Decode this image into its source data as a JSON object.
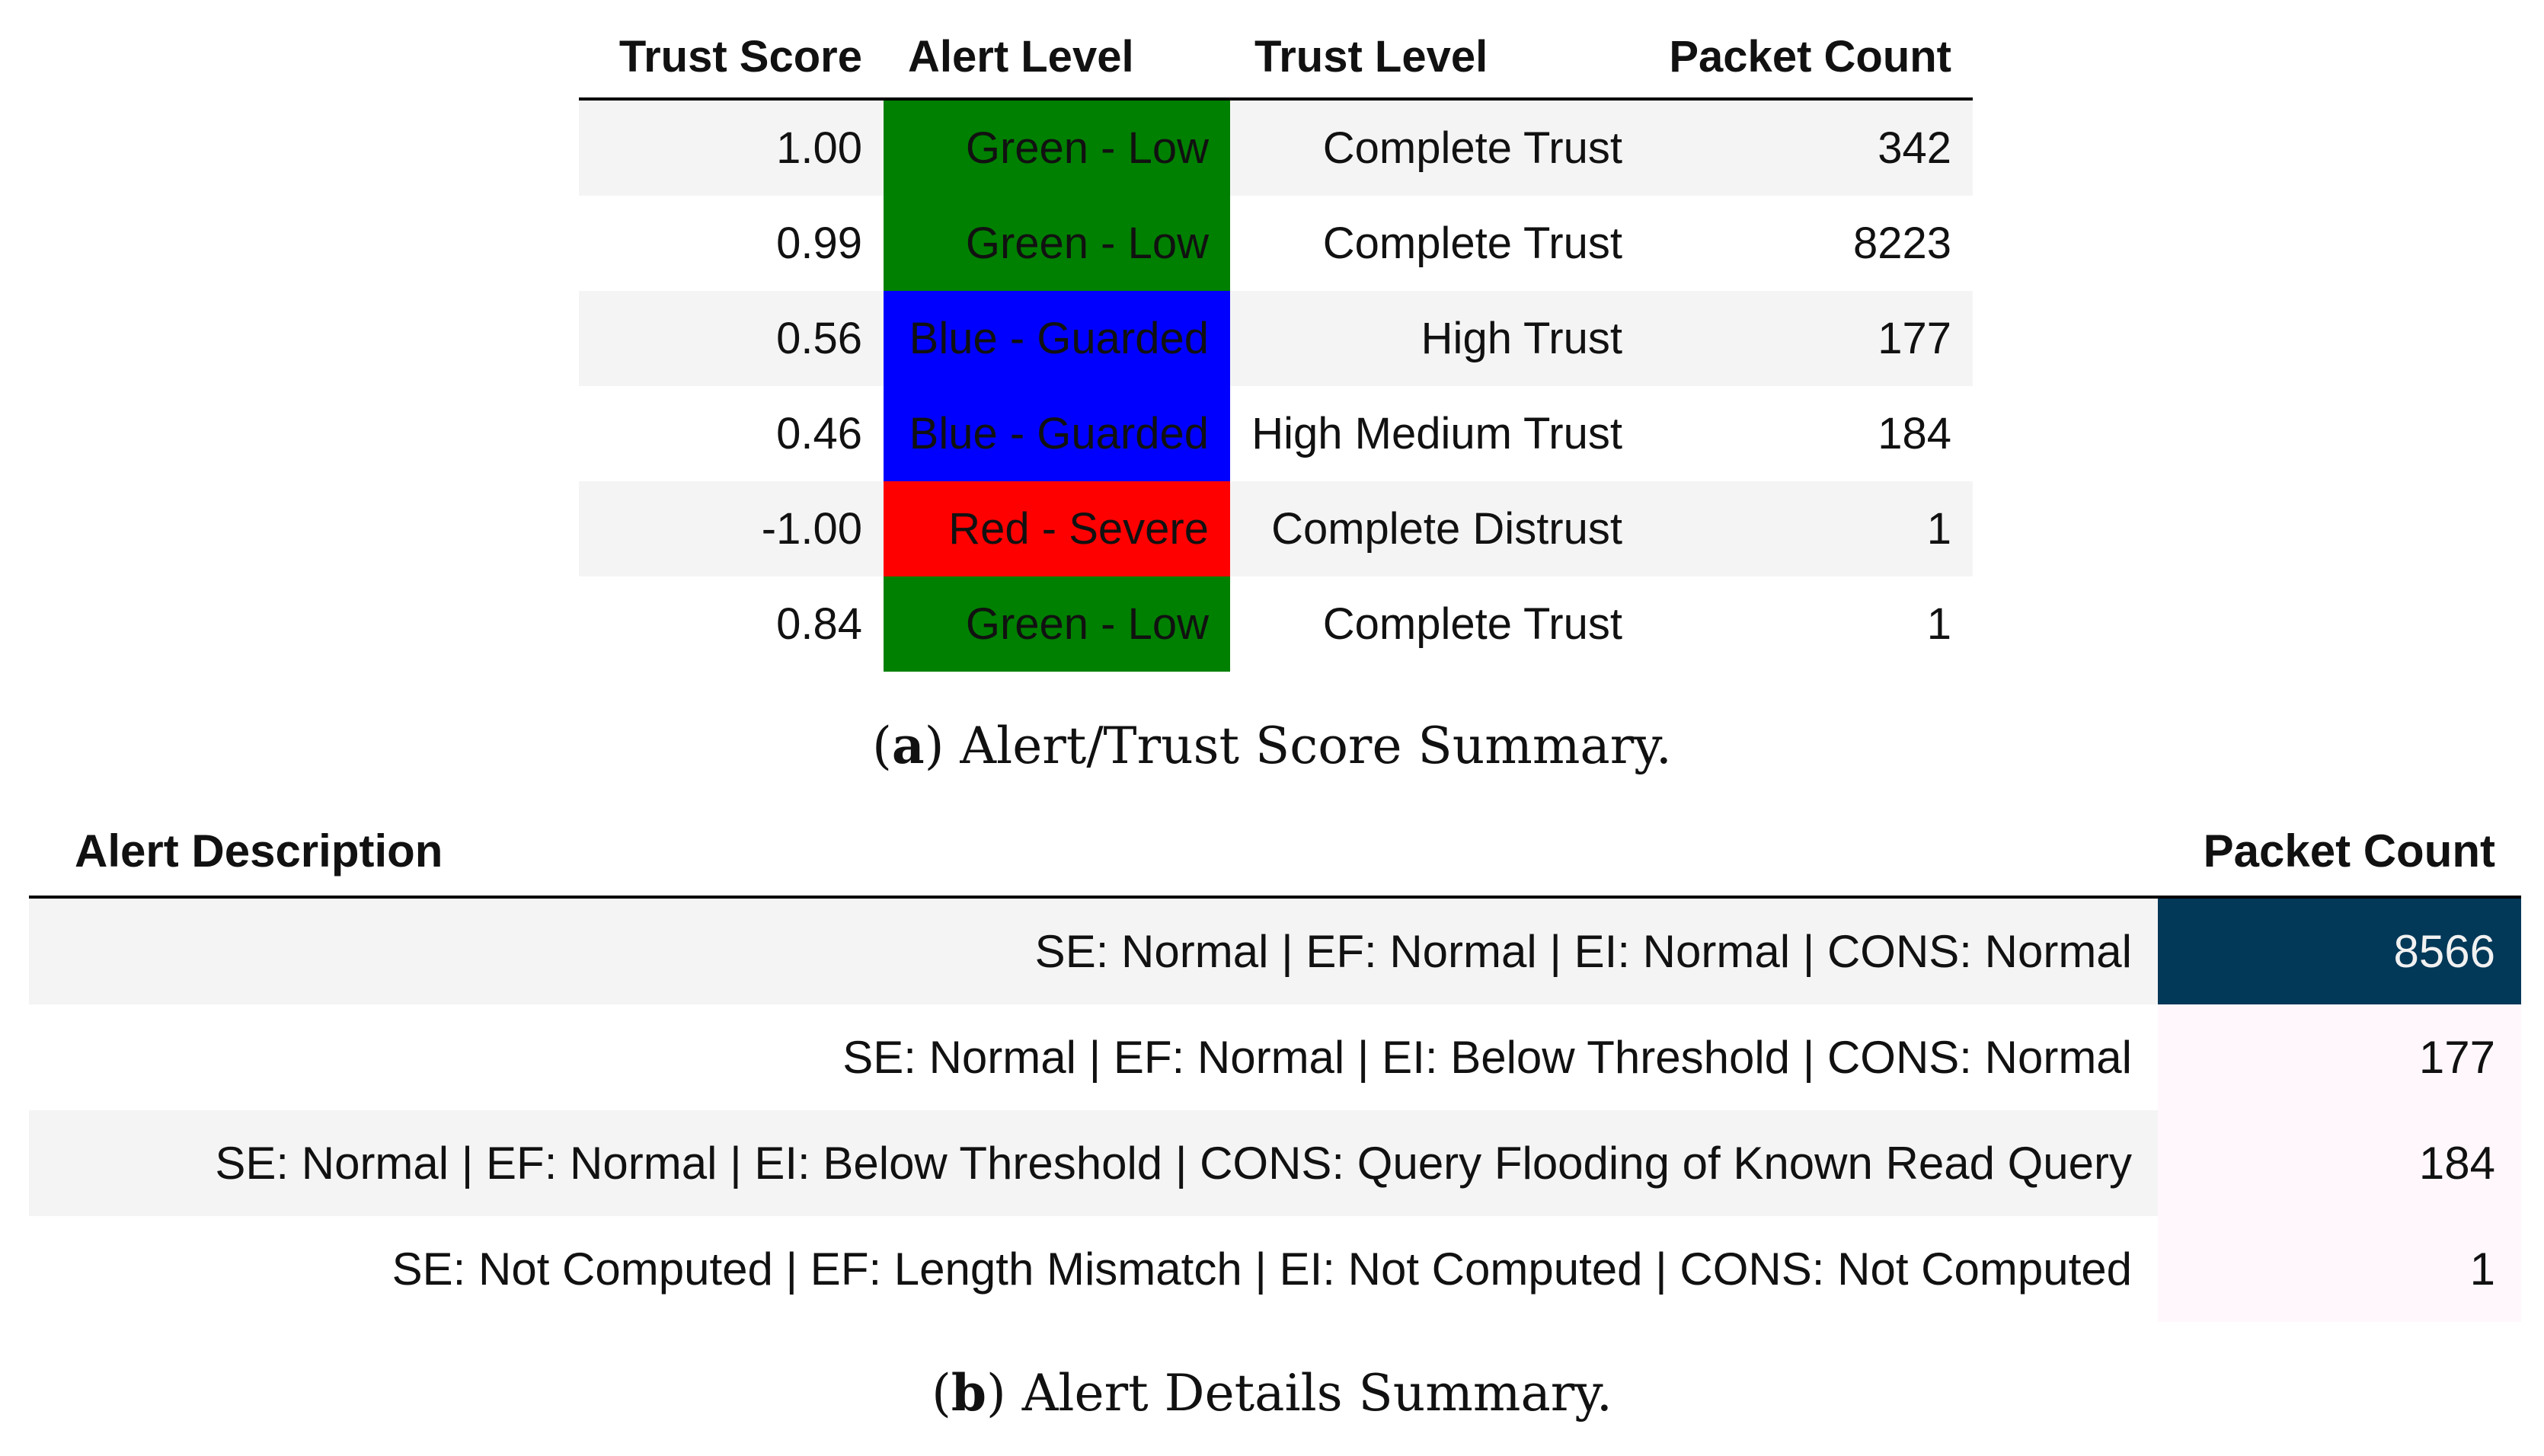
{
  "table_a": {
    "headers": [
      "Trust Score",
      "Alert Level",
      "Trust Level",
      "Packet Count"
    ],
    "rows": [
      {
        "trust_score": "1.00",
        "alert_level": "Green - Low",
        "alert_color": "#008000",
        "trust_level": "Complete Trust",
        "packet_count": "342"
      },
      {
        "trust_score": "0.99",
        "alert_level": "Green - Low",
        "alert_color": "#008000",
        "trust_level": "Complete Trust",
        "packet_count": "8223"
      },
      {
        "trust_score": "0.56",
        "alert_level": "Blue - Guarded",
        "alert_color": "#0000ff",
        "trust_level": "High Trust",
        "packet_count": "177"
      },
      {
        "trust_score": "0.46",
        "alert_level": "Blue - Guarded",
        "alert_color": "#0000ff",
        "trust_level": "High Medium Trust",
        "packet_count": "184"
      },
      {
        "trust_score": "-1.00",
        "alert_level": "Red - Severe",
        "alert_color": "#ff0000",
        "trust_level": "Complete Distrust",
        "packet_count": "1"
      },
      {
        "trust_score": "0.84",
        "alert_level": "Green - Low",
        "alert_color": "#008000",
        "trust_level": "Complete Trust",
        "packet_count": "1"
      }
    ]
  },
  "caption_a": {
    "label": "a",
    "text": "Alert/Trust Score Summary."
  },
  "table_b": {
    "headers": [
      "Alert Description",
      "Packet Count"
    ],
    "rows": [
      {
        "description": "SE: Normal | EF: Normal | EI: Normal | CONS: Normal",
        "packet_count": "8566",
        "heat_color": "#023858",
        "text_color": "#f1f1f1"
      },
      {
        "description": "SE: Normal | EF: Normal | EI: Below Threshold | CONS: Normal",
        "packet_count": "177",
        "heat_color": "#fff7fb",
        "text_color": "#111111"
      },
      {
        "description": "SE: Normal | EF: Normal | EI: Below Threshold | CONS: Query Flooding of Known Read Query",
        "packet_count": "184",
        "heat_color": "#fff7fb",
        "text_color": "#111111"
      },
      {
        "description": "SE: Not Computed | EF: Length Mismatch | EI: Not Computed | CONS: Not Computed",
        "packet_count": "1",
        "heat_color": "#fff7fb",
        "text_color": "#111111"
      }
    ]
  },
  "caption_b": {
    "label": "b",
    "text": "Alert Details Summary."
  }
}
